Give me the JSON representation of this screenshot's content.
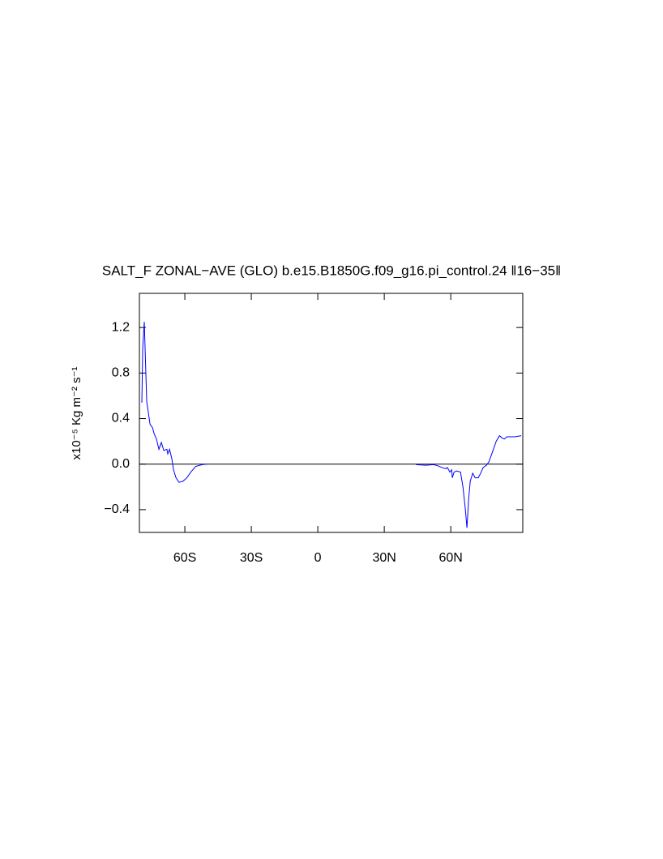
{
  "chart_data": {
    "type": "line",
    "title": "SALT_F ZONAL−AVE (GLO) b.e15.B1850G.f09_g16.pi_control.24 ‖16−35‖",
    "y_label": "x10⁻⁵ Kg m⁻² s⁻¹",
    "x": [
      -79.4,
      -79.0,
      -78.3,
      -77.2,
      -75.7,
      -74.6,
      -73.9,
      -72.8,
      -71.7,
      -70.6,
      -69.5,
      -68.1,
      -67.7,
      -66.9,
      -65.9,
      -65.1,
      -64.0,
      -62.6,
      -60.8,
      -59.1,
      -57.3,
      -55.1,
      -52.2,
      -50.1,
      0,
      44.3,
      48.7,
      52.3,
      54.2,
      56.0,
      57.8,
      58.5,
      59.6,
      60.4,
      60.7,
      61.5,
      62.6,
      64.4,
      65.5,
      66.6,
      67.3,
      68.1,
      68.8,
      69.9,
      71.0,
      72.4,
      73.5,
      74.6,
      76.1,
      77.2,
      78.7,
      80.5,
      82.0,
      83.1,
      84.2,
      85.3,
      88.9,
      91.8
    ],
    "series": [
      {
        "color": "#0000ff",
        "values": [
          0.54,
          1.02,
          1.25,
          0.55,
          0.35,
          0.32,
          0.27,
          0.22,
          0.13,
          0.19,
          0.12,
          0.13,
          0.09,
          0.13,
          0.05,
          -0.05,
          -0.12,
          -0.16,
          -0.15,
          -0.12,
          -0.07,
          -0.02,
          -0.005,
          0,
          null,
          -0.005,
          -0.01,
          -0.005,
          -0.015,
          -0.03,
          -0.04,
          -0.03,
          -0.07,
          -0.05,
          -0.12,
          -0.07,
          -0.06,
          -0.07,
          -0.2,
          -0.4,
          -0.56,
          -0.3,
          -0.15,
          -0.08,
          -0.12,
          -0.12,
          -0.08,
          -0.03,
          -0.01,
          0.02,
          0.1,
          0.2,
          0.25,
          0.23,
          0.22,
          0.24,
          0.24,
          0.25
        ]
      }
    ],
    "xlim": [
      -80.5,
      92.5
    ],
    "xticks": [
      {
        "value": -60,
        "label": "60S"
      },
      {
        "value": -30,
        "label": "30S"
      },
      0,
      {
        "value": 30,
        "label": "30N"
      },
      {
        "value": 60,
        "label": "60N"
      }
    ],
    "ylim": [
      -0.6,
      1.5
    ],
    "yticks": [
      {
        "value": -0.4,
        "label": "−0.4"
      },
      {
        "value": 0,
        "label": "0.0"
      },
      0.4,
      0.8,
      1.2
    ],
    "reference_line": 0
  }
}
